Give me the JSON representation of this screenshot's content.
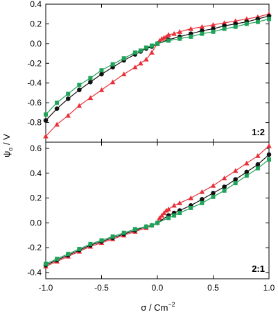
{
  "chart_data": [
    {
      "type": "line",
      "panel_label": "1:2",
      "xlim": [
        -1.0,
        1.0
      ],
      "ylim": [
        -1.0,
        0.4
      ],
      "yticks": [
        "0.4",
        "0.2",
        "0.0",
        "-0.2",
        "-0.4",
        "-0.6",
        "-0.8"
      ],
      "ytick_values": [
        0.4,
        0.2,
        0.0,
        -0.2,
        -0.4,
        -0.6,
        -0.8
      ],
      "series": [
        {
          "color": "#e8303a",
          "marker": "triangle",
          "x": [
            -1.0,
            -0.9,
            -0.8,
            -0.7,
            -0.6,
            -0.5,
            -0.4,
            -0.3,
            -0.2,
            -0.15,
            -0.1,
            -0.05,
            0.0,
            0.02,
            0.04,
            0.06,
            0.08,
            0.1,
            0.15,
            0.2,
            0.3,
            0.4,
            0.5,
            0.6,
            0.7,
            0.8,
            0.9,
            1.0
          ],
          "y": [
            -0.94,
            -0.82,
            -0.73,
            -0.63,
            -0.55,
            -0.47,
            -0.39,
            -0.31,
            -0.24,
            -0.2,
            -0.16,
            -0.09,
            0.0,
            0.03,
            0.05,
            0.06,
            0.07,
            0.09,
            0.1,
            0.12,
            0.15,
            0.17,
            0.19,
            0.21,
            0.23,
            0.25,
            0.27,
            0.3
          ]
        },
        {
          "color": "#111111",
          "marker": "circle",
          "x": [
            -1.0,
            -0.9,
            -0.8,
            -0.7,
            -0.6,
            -0.5,
            -0.4,
            -0.3,
            -0.2,
            -0.15,
            -0.1,
            -0.05,
            0.0,
            0.1,
            0.2,
            0.3,
            0.4,
            0.5,
            0.6,
            0.7,
            0.8,
            0.9,
            1.0
          ],
          "y": [
            -0.78,
            -0.66,
            -0.56,
            -0.47,
            -0.39,
            -0.31,
            -0.24,
            -0.17,
            -0.11,
            -0.08,
            -0.05,
            -0.03,
            0.0,
            0.04,
            0.07,
            0.1,
            0.13,
            0.15,
            0.18,
            0.2,
            0.22,
            0.25,
            0.28
          ]
        },
        {
          "color": "#1fa35a",
          "marker": "square",
          "x": [
            -1.0,
            -0.9,
            -0.8,
            -0.7,
            -0.6,
            -0.5,
            -0.4,
            -0.3,
            -0.2,
            -0.15,
            -0.1,
            -0.05,
            0.0,
            0.1,
            0.2,
            0.3,
            0.4,
            0.5,
            0.6,
            0.7,
            0.8,
            0.9,
            1.0
          ],
          "y": [
            -0.72,
            -0.6,
            -0.51,
            -0.42,
            -0.35,
            -0.27,
            -0.21,
            -0.15,
            -0.09,
            -0.07,
            -0.04,
            -0.02,
            0.0,
            0.03,
            0.05,
            0.07,
            0.1,
            0.12,
            0.15,
            0.17,
            0.2,
            0.22,
            0.25
          ]
        }
      ]
    },
    {
      "type": "line",
      "panel_label": "2:1",
      "xlim": [
        -1.0,
        1.0
      ],
      "ylim": [
        -0.45,
        0.65
      ],
      "yticks": [
        "0.6",
        "0.4",
        "0.2",
        "0.0",
        "-0.2",
        "-0.4"
      ],
      "ytick_values": [
        0.6,
        0.4,
        0.2,
        0.0,
        -0.2,
        -0.4
      ],
      "xticks": [
        "-1.0",
        "-0.5",
        "0.0",
        "0.5",
        "1.0"
      ],
      "xtick_values": [
        -1.0,
        -0.5,
        0.0,
        0.5,
        1.0
      ],
      "series": [
        {
          "color": "#e8303a",
          "marker": "triangle",
          "x": [
            -1.0,
            -0.9,
            -0.8,
            -0.7,
            -0.6,
            -0.5,
            -0.4,
            -0.3,
            -0.2,
            -0.1,
            -0.05,
            0.0,
            0.02,
            0.04,
            0.06,
            0.08,
            0.1,
            0.15,
            0.2,
            0.3,
            0.4,
            0.5,
            0.6,
            0.7,
            0.8,
            0.9,
            1.0
          ],
          "y": [
            -0.35,
            -0.31,
            -0.27,
            -0.23,
            -0.19,
            -0.16,
            -0.13,
            -0.1,
            -0.07,
            -0.04,
            -0.02,
            0.0,
            0.04,
            0.06,
            0.08,
            0.1,
            0.11,
            0.14,
            0.16,
            0.2,
            0.25,
            0.3,
            0.36,
            0.42,
            0.48,
            0.54,
            0.62
          ]
        },
        {
          "color": "#111111",
          "marker": "circle",
          "x": [
            -1.0,
            -0.9,
            -0.8,
            -0.7,
            -0.6,
            -0.5,
            -0.4,
            -0.3,
            -0.2,
            -0.1,
            -0.05,
            0.0,
            0.1,
            0.15,
            0.2,
            0.3,
            0.4,
            0.5,
            0.6,
            0.7,
            0.8,
            0.9,
            1.0
          ],
          "y": [
            -0.34,
            -0.3,
            -0.26,
            -0.22,
            -0.18,
            -0.15,
            -0.12,
            -0.09,
            -0.06,
            -0.03,
            -0.02,
            0.0,
            0.06,
            0.08,
            0.1,
            0.14,
            0.19,
            0.24,
            0.29,
            0.35,
            0.41,
            0.47,
            0.55
          ]
        },
        {
          "color": "#1fa35a",
          "marker": "square",
          "x": [
            -1.0,
            -0.9,
            -0.8,
            -0.7,
            -0.6,
            -0.5,
            -0.4,
            -0.3,
            -0.2,
            -0.1,
            -0.05,
            0.0,
            0.1,
            0.15,
            0.2,
            0.3,
            0.4,
            0.5,
            0.6,
            0.7,
            0.8,
            0.9,
            1.0
          ],
          "y": [
            -0.33,
            -0.29,
            -0.25,
            -0.21,
            -0.17,
            -0.14,
            -0.11,
            -0.08,
            -0.05,
            -0.03,
            -0.02,
            0.0,
            0.04,
            0.06,
            0.08,
            0.12,
            0.16,
            0.21,
            0.26,
            0.32,
            0.38,
            0.44,
            0.51
          ]
        }
      ]
    }
  ],
  "labels": {
    "xlabel_main": "σ / Cm",
    "xlabel_sup": "−2",
    "ylabel_main": "ψ",
    "ylabel_sub": "o",
    "ylabel_unit": " / V"
  }
}
